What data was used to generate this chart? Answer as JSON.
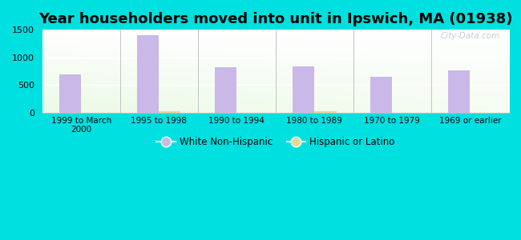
{
  "title": "Year householders moved into unit in Ipswich, MA (01938)",
  "categories": [
    "1999 to March\n2000",
    "1995 to 1998",
    "1990 to 1994",
    "1980 to 1989",
    "1970 to 1979",
    "1969 or earlier"
  ],
  "white_values": [
    690,
    1400,
    820,
    840,
    650,
    760
  ],
  "hispanic_values": [
    0,
    30,
    0,
    30,
    0,
    0
  ],
  "white_color": "#c9b8e8",
  "hispanic_color": "#e8d898",
  "bg_outer": "#00e0e0",
  "bg_plot_top_left": "#d8f0e8",
  "bg_plot_top_right": "#f8ffff",
  "bg_plot_bottom": "#d8efd8",
  "ylim": [
    0,
    1500
  ],
  "yticks": [
    0,
    500,
    1000,
    1500
  ],
  "bar_width": 0.28,
  "title_fontsize": 13,
  "watermark": "City-Data.com"
}
